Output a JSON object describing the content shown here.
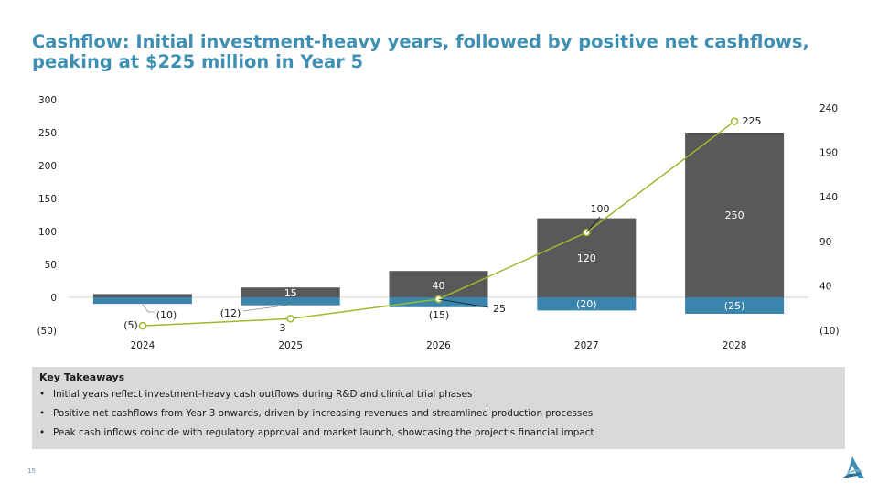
{
  "title": "Cashflow: Initial investment-heavy years, followed by positive net cashflows, peaking at $225 million in Year 5",
  "colors": {
    "title": "#3f8fb3",
    "inflow_bar": "#595959",
    "outflow_bar": "#3b85ad",
    "net_line": "#9bbb2d",
    "panel": "#d9d9d9"
  },
  "chart_data": {
    "type": "bar",
    "categories": [
      "2024",
      "2025",
      "2026",
      "2027",
      "2028"
    ],
    "series": [
      {
        "values": [
          5,
          15,
          40,
          120,
          250
        ],
        "labels": [
          "",
          "15",
          "40",
          "120",
          "250"
        ],
        "axis": "left",
        "color": "#595959"
      },
      {
        "values": [
          -10,
          -12,
          -15,
          -20,
          -25
        ],
        "labels": [
          "(10)",
          "(12)",
          "(15)",
          "(20)",
          "(25)"
        ],
        "axis": "left",
        "color": "#3b85ad"
      },
      {
        "type": "line",
        "values": [
          -5,
          3,
          25,
          100,
          225
        ],
        "labels": [
          "(5)",
          "3",
          "25",
          "100",
          "225"
        ],
        "axis": "right",
        "color": "#9bbb2d"
      }
    ],
    "y_left": {
      "min": -50,
      "max": 300,
      "ticks": [
        -50,
        0,
        50,
        100,
        150,
        200,
        250,
        300
      ],
      "tick_labels": [
        "(50)",
        "0",
        "50",
        "100",
        "150",
        "200",
        "250",
        "300"
      ]
    },
    "y_right": {
      "min": -10,
      "max": 240,
      "ticks": [
        -10,
        40,
        90,
        140,
        190,
        240
      ],
      "tick_labels": [
        "(10)",
        "40",
        "90",
        "140",
        "190",
        "240"
      ]
    },
    "stacked": true,
    "grid": false,
    "legend": "none"
  },
  "takeaways": {
    "title": "Key Takeaways",
    "bullet": "•",
    "items": [
      "Initial years reflect investment-heavy cash outflows during R&D and clinical trial phases",
      "Positive net cashflows from Year 3 onwards, driven by increasing revenues and streamlined production processes",
      "Peak cash inflows coincide with regulatory approval and market launch, showcasing the project's financial impact"
    ]
  },
  "page_number": "15",
  "logo_icon": "company-triangle-logo-icon"
}
